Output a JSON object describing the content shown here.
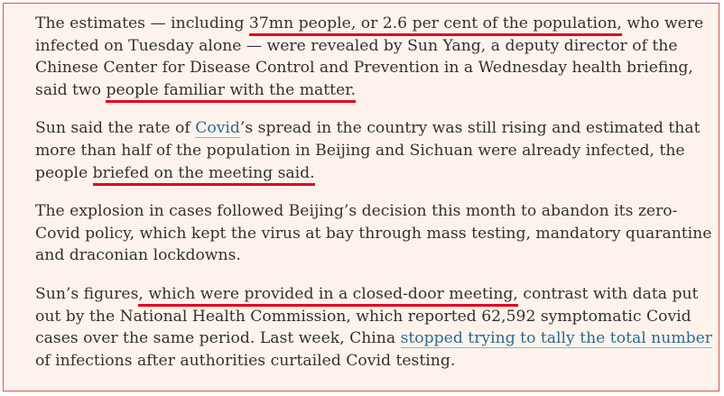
{
  "article": {
    "p1": {
      "t1": "The estimates — including ",
      "h1": "37mn people, or 2.6 per cent of the population,",
      "t2": " who were infected on Tuesday alone — were revealed by Sun Yang, a deputy director of the Chinese Center for Disease Control and Prevention in a Wednesday health briefing, said two ",
      "h2": "people familiar with the matter.",
      "t3": ""
    },
    "p2": {
      "t1": "Sun said the rate of ",
      "link": "Covid",
      "t2": "’s spread in the country was still rising and estimated that more than half of the population in Beijing and Sichuan were already infected, the people ",
      "h1": "briefed on the meeting said.",
      "t3": ""
    },
    "p3": {
      "text": "The explosion in cases followed Beijing’s decision this month to abandon its zero-Covid policy, which kept the virus at bay through mass testing, mandatory quarantine and draconian lockdowns."
    },
    "p4": {
      "t1": "Sun’s figures",
      "h1": ", which were provided in a closed-door meeting,",
      "t2": " contrast with data put out by the National Health Commission, which reported 62,592 symptomatic Covid cases over the same period. Last week, China ",
      "link": "stopped trying to tally the total number",
      "t3": " of infections after authorities curtailed Covid testing."
    }
  },
  "colors": {
    "background": "#fdf3ec",
    "text": "#33302e",
    "underline_highlight": "#e3001b",
    "link": "#2a6b8f",
    "frame_border": "#d9534f"
  }
}
